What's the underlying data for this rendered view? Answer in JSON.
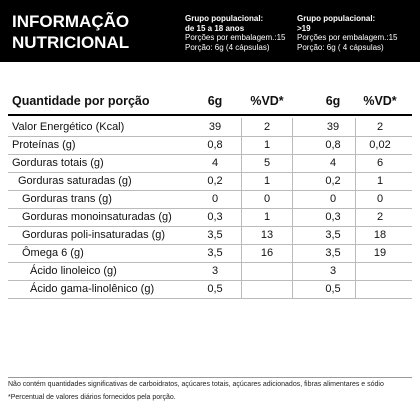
{
  "header": {
    "title": [
      "INFORMAÇÃO",
      "NUTRICIONAL"
    ],
    "groups": [
      {
        "lines": [
          "Grupo populacional:",
          "de 15 a 18 anos",
          "Porções por embalagem.:15",
          "Porção: 6g (4 cápsulas)"
        ]
      },
      {
        "lines": [
          "Grupo populacional:",
          ">19",
          "Porções por embalagem.:15",
          "Porção: 6g ( 4 cápsulas)"
        ]
      }
    ]
  },
  "table": {
    "columns": [
      "Quantidade por porção",
      "6g",
      "%VD*",
      "6g",
      "%VD*"
    ],
    "rows": [
      {
        "label": "Valor Energético (Kcal)",
        "values": [
          "39",
          "2",
          "39",
          "2"
        ]
      },
      {
        "label": "Proteínas (g)",
        "values": [
          "0,8",
          "1",
          "0,8",
          "0,02"
        ]
      },
      {
        "label": "Gorduras totais (g)",
        "values": [
          "4",
          "5",
          "4",
          "6"
        ]
      },
      {
        "label": "Gorduras saturadas (g)",
        "values": [
          "0,2",
          "1",
          "0,2",
          "1"
        ]
      },
      {
        "label": "Gorduras trans (g)",
        "values": [
          "0",
          "0",
          "0",
          "0"
        ]
      },
      {
        "label": "Gorduras monoinsaturadas (g)",
        "values": [
          "0,3",
          "1",
          "0,3",
          "2"
        ]
      },
      {
        "label": "Gorduras poli-insaturadas (g)",
        "values": [
          "3,5",
          "13",
          "3,5",
          "18"
        ]
      },
      {
        "label": "Ômega 6 (g)",
        "values": [
          "3,5",
          "16",
          "3,5",
          "19"
        ]
      },
      {
        "label": "Ácido linoleico (g)",
        "values": [
          "3",
          null,
          "3",
          null
        ]
      },
      {
        "label": "Ácido gama-linolênico (g)",
        "values": [
          "0,5",
          null,
          "0,5",
          null
        ]
      }
    ]
  },
  "footer": [
    "Não contém quantidades significativas de carboidratos, açúcares totais, açúcares adicionados, fibras alimentares e sódio",
    "*Percentual de valores diários fornecidos pela porção."
  ]
}
